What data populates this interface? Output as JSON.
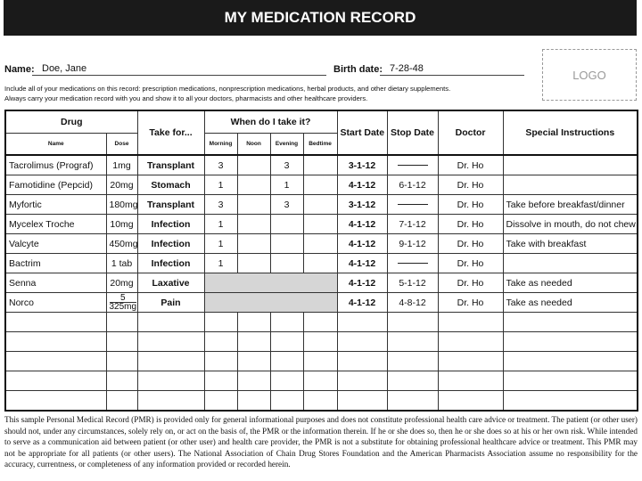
{
  "header": {
    "title": "MY MEDICATION RECORD"
  },
  "patient": {
    "name_label": "Name:",
    "name": "Doe, Jane",
    "birth_label": "Birth date:",
    "birth_date": "7-28-48",
    "logo": "LOGO"
  },
  "instructions": [
    "Include all of your medications on this record: prescription medications, nonprescription medications, herbal products, and other dietary supplements.",
    "Always carry your medication record with you and show it to all your doctors, pharmacists and other healthcare providers."
  ],
  "table": {
    "headers": {
      "drug": "Drug",
      "name": "Name",
      "dose": "Dose",
      "take_for": "Take for...",
      "when": "When do I take it?",
      "morning": "Morning",
      "noon": "Noon",
      "evening": "Evening",
      "bedtime": "Bedtime",
      "start": "Start Date",
      "stop": "Stop Date",
      "doctor": "Doctor",
      "special": "Special Instructions"
    },
    "rows": [
      {
        "name": "Tacrolimus (Prograf)",
        "dose": "1mg",
        "take_for": "Transplant",
        "morning": "3",
        "noon": null,
        "evening": "3",
        "bedtime": null,
        "start": "3-1-12",
        "stop": null,
        "doctor": "Dr. Ho",
        "special": null
      },
      {
        "name": "Famotidine (Pepcid)",
        "dose": "20mg",
        "take_for": "Stomach",
        "morning": "1",
        "noon": null,
        "evening": "1",
        "bedtime": null,
        "start": "4-1-12",
        "stop": "6-1-12",
        "doctor": "Dr. Ho",
        "special": null
      },
      {
        "name": "Myfortic",
        "dose": "180mg",
        "take_for": "Transplant",
        "morning": "3",
        "noon": null,
        "evening": "3",
        "bedtime": null,
        "start": "3-1-12",
        "stop": null,
        "doctor": "Dr. Ho",
        "special": "Take before breakfast/dinner"
      },
      {
        "name": "Mycelex Troche",
        "dose": "10mg",
        "take_for": "Infection",
        "morning": "1",
        "noon": null,
        "evening": null,
        "bedtime": null,
        "start": "4-1-12",
        "stop": "7-1-12",
        "doctor": "Dr. Ho",
        "special": "Dissolve in mouth, do not chew"
      },
      {
        "name": "Valcyte",
        "dose": "450mg",
        "take_for": "Infection",
        "morning": "1",
        "noon": null,
        "evening": null,
        "bedtime": null,
        "start": "4-1-12",
        "stop": "9-1-12",
        "doctor": "Dr. Ho",
        "special": "Take with breakfast"
      },
      {
        "name": "Bactrim",
        "dose": "1 tab",
        "take_for": "Infection",
        "morning": "1",
        "noon": null,
        "evening": null,
        "bedtime": null,
        "start": "4-1-12",
        "stop": null,
        "doctor": "Dr. Ho",
        "special": null
      },
      {
        "name": "Senna",
        "dose": "20mg",
        "take_for": "Laxative",
        "morning": null,
        "noon": null,
        "evening": null,
        "bedtime": null,
        "start": "4-1-12",
        "stop": "5-1-12",
        "doctor": "Dr. Ho",
        "special": "Take as needed"
      },
      {
        "name": "Norco",
        "dose": [
          "5",
          "325mg"
        ],
        "take_for": "Pain",
        "morning": null,
        "noon": null,
        "evening": null,
        "bedtime": null,
        "start": "4-1-12",
        "stop": "4-8-12",
        "doctor": "Dr. Ho",
        "special": "Take as needed"
      }
    ]
  },
  "footer": "This sample Personal Medical Record (PMR) is provided only for general informational purposes and does not constitute professional health care advice or treatment. The patient (or other user) should not, under any circumstances, solely rely on, or act on the basis of, the PMR or the information therein. If he or she does so, then he or she does so at his or her own risk. While intended to serve as a communication aid between patient (or other user) and health care provider, the PMR is not a substitute for obtaining professional healthcare advice or treatment. This PMR may not be appropriate for all patients (or other users). The National Association of Chain Drug Stores Foundation and the American Pharmacists Association assume no responsibility for the accuracy, currentness, or completeness of any information provided or recorded herein."
}
